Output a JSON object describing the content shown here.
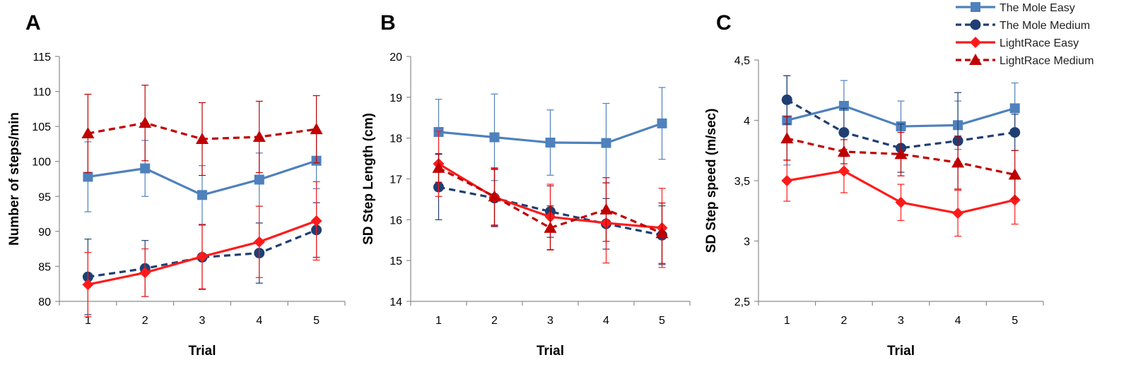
{
  "legend": [
    {
      "name": "The Mole Easy",
      "color": "#4f81bd",
      "dashed": false,
      "marker": "square"
    },
    {
      "name": "The Mole Medium",
      "color": "#1f3f73",
      "dashed": true,
      "marker": "circle"
    },
    {
      "name": "LightRace Easy",
      "color": "#ff1a1a",
      "dashed": false,
      "marker": "diamond"
    },
    {
      "name": "LightRace Medium",
      "color": "#c00000",
      "dashed": true,
      "marker": "triangle"
    }
  ],
  "chart_data": [
    {
      "panel": "A",
      "type": "line",
      "xlabel": "Trial",
      "ylabel": "Number of steps/min",
      "categories": [
        "1",
        "2",
        "3",
        "4",
        "5"
      ],
      "ylim": [
        80,
        115
      ],
      "yticks": [
        "80",
        "85",
        "90",
        "95",
        "100",
        "105",
        "110",
        "115"
      ],
      "series": [
        {
          "name": "The Mole Easy",
          "values": [
            97.8,
            99.0,
            95.2,
            97.4,
            100.1
          ],
          "error": [
            5.0,
            4.0,
            4.2,
            3.8,
            4.0
          ]
        },
        {
          "name": "The Mole Medium",
          "values": [
            83.5,
            84.7,
            86.3,
            86.9,
            90.2
          ],
          "error": [
            5.4,
            4.0,
            4.6,
            4.3,
            3.9
          ]
        },
        {
          "name": "LightRace Easy",
          "values": [
            82.4,
            84.1,
            86.4,
            88.5,
            91.5
          ],
          "error": [
            4.6,
            3.4,
            4.6,
            5.1,
            5.6
          ]
        },
        {
          "name": "LightRace Medium",
          "values": [
            104.0,
            105.5,
            103.2,
            103.5,
            104.6
          ],
          "error": [
            5.6,
            5.4,
            5.2,
            5.1,
            4.8
          ]
        }
      ]
    },
    {
      "panel": "B",
      "type": "line",
      "xlabel": "Trial",
      "ylabel": "SD Step Length (cm)",
      "categories": [
        "1",
        "2",
        "3",
        "4",
        "5"
      ],
      "ylim": [
        14,
        20
      ],
      "yticks": [
        "14",
        "15",
        "16",
        "17",
        "18",
        "19",
        "20"
      ],
      "series": [
        {
          "name": "The Mole Easy",
          "values": [
            18.15,
            18.02,
            17.89,
            17.88,
            18.36
          ],
          "error": [
            0.8,
            1.06,
            0.8,
            0.97,
            0.88
          ]
        },
        {
          "name": "The Mole Medium",
          "values": [
            16.8,
            16.53,
            16.2,
            15.9,
            15.62
          ],
          "error": [
            0.8,
            0.7,
            0.63,
            0.62,
            0.72
          ]
        },
        {
          "name": "LightRace Easy",
          "values": [
            17.37,
            16.55,
            16.07,
            15.92,
            15.8
          ],
          "error": [
            0.8,
            0.7,
            0.8,
            0.98,
            0.97
          ]
        },
        {
          "name": "LightRace Medium",
          "values": [
            17.27,
            16.57,
            15.8,
            16.25,
            15.67
          ],
          "error": [
            0.35,
            0.7,
            0.54,
            0.78,
            0.74
          ]
        }
      ]
    },
    {
      "panel": "C",
      "type": "line",
      "xlabel": "Trial",
      "ylabel": "SD Step speed (m/sec)",
      "categories": [
        "1",
        "2",
        "3",
        "4",
        "5"
      ],
      "ylim": [
        2.5,
        4.5
      ],
      "yticks": [
        "2,5",
        "3",
        "3,5",
        "4",
        "4,5"
      ],
      "series": [
        {
          "name": "The Mole Easy",
          "values": [
            4.0,
            4.12,
            3.95,
            3.96,
            4.1
          ],
          "error": [
            0.37,
            0.21,
            0.21,
            0.2,
            0.21
          ]
        },
        {
          "name": "The Mole Medium",
          "values": [
            4.17,
            3.9,
            3.77,
            3.83,
            3.9
          ],
          "error": [
            0.2,
            0.2,
            0.2,
            0.4,
            0.15
          ]
        },
        {
          "name": "LightRace Easy",
          "values": [
            3.5,
            3.58,
            3.32,
            3.23,
            3.34
          ],
          "error": [
            0.17,
            0.18,
            0.15,
            0.19,
            0.2
          ]
        },
        {
          "name": "LightRace Medium",
          "values": [
            3.85,
            3.74,
            3.72,
            3.65,
            3.55
          ],
          "error": [
            0.18,
            0.1,
            0.18,
            0.22,
            0.2
          ]
        }
      ]
    }
  ]
}
